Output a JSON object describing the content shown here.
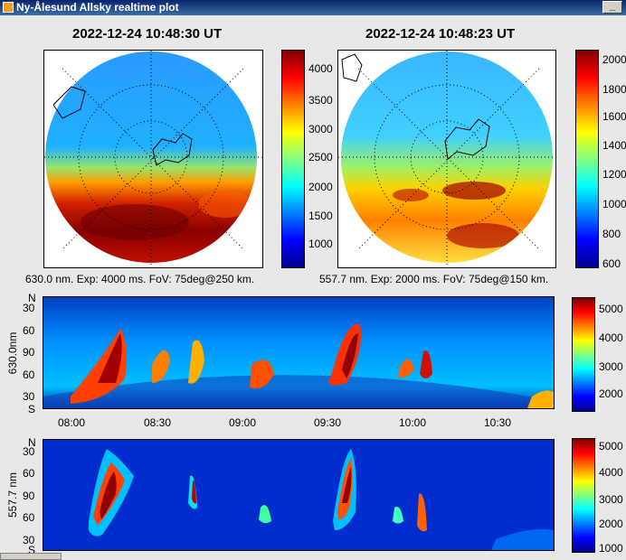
{
  "window": {
    "title": "Ny-Ålesund Allsky realtime plot",
    "minimize_label": "_"
  },
  "left_sky": {
    "timestamp": "2022-12-24 10:48:30 UT",
    "caption": "630.0 nm. Exp: 4000 ms. FoV: 75deg@250 km.",
    "colorbar_ticks": [
      "4000",
      "3500",
      "3000",
      "2500",
      "2000",
      "1500",
      "1000"
    ]
  },
  "right_sky": {
    "timestamp": "2022-12-24 10:48:23 UT",
    "caption": "557.7 nm. Exp: 2000 ms. FoV: 75deg@150 km.",
    "colorbar_ticks": [
      "2000",
      "1800",
      "1600",
      "1400",
      "1200",
      "1000",
      "800",
      "600"
    ]
  },
  "keogram_630": {
    "ylabel": "630.0nm",
    "y_ticks": [
      "N",
      "30",
      "60",
      "90",
      "60",
      "30",
      "S"
    ],
    "x_ticks": [
      "08:00",
      "08:30",
      "09:00",
      "09:30",
      "10:00",
      "10:30"
    ],
    "colorbar_ticks": [
      "5000",
      "4000",
      "3000",
      "2000"
    ]
  },
  "keogram_557": {
    "ylabel": "557.7 nm",
    "y_ticks": [
      "N",
      "30",
      "60",
      "90",
      "60",
      "30",
      "S"
    ],
    "colorbar_ticks": [
      "5000",
      "4000",
      "3000",
      "2000",
      "1000"
    ]
  },
  "colors": {
    "titlebar": "#0a246a",
    "jet": [
      "#00008f",
      "#0000ff",
      "#0080ff",
      "#00ffff",
      "#80ff80",
      "#ffff00",
      "#ff8000",
      "#ff0000",
      "#800000"
    ]
  }
}
